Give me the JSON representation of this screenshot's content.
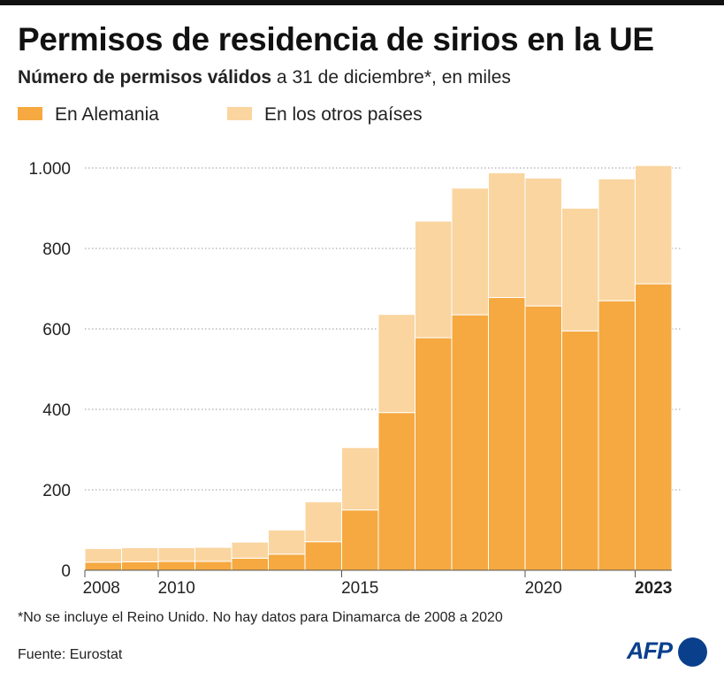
{
  "title": "Permisos de residencia de sirios en la UE",
  "subtitle_bold": "Número de permisos válidos",
  "subtitle_rest": " a 31 de diciembre*, en miles",
  "colors": {
    "germany": "#f5a940",
    "others": "#fad5a0",
    "grid": "#999999",
    "axis": "#555555"
  },
  "chart_data": {
    "type": "bar",
    "stacked": true,
    "categories": [
      "2008",
      "2009",
      "2010",
      "2011",
      "2012",
      "2013",
      "2014",
      "2015",
      "2016",
      "2017",
      "2018",
      "2019",
      "2020",
      "2021",
      "2022",
      "2023"
    ],
    "series": [
      {
        "name": "En Alemania",
        "color": "#f5a940",
        "values": [
          20,
          21,
          22,
          22,
          30,
          40,
          71,
          150,
          392,
          578,
          635,
          678,
          657,
          595,
          670,
          712
        ]
      },
      {
        "name": "En los otros países",
        "color": "#fad5a0",
        "values": [
          34,
          35,
          34,
          35,
          40,
          60,
          99,
          155,
          244,
          290,
          315,
          310,
          318,
          305,
          303,
          294
        ]
      }
    ],
    "x_tick_labels": [
      {
        "category": "2008",
        "label": "2008",
        "bold": false
      },
      {
        "category": "2010",
        "label": "2010",
        "bold": false
      },
      {
        "category": "2015",
        "label": "2015",
        "bold": false
      },
      {
        "category": "2020",
        "label": "2020",
        "bold": false
      },
      {
        "category": "2023",
        "label": "2023",
        "bold": true
      }
    ],
    "y_ticks": [
      {
        "value": 0,
        "label": "0"
      },
      {
        "value": 200,
        "label": "200"
      },
      {
        "value": 400,
        "label": "400"
      },
      {
        "value": 600,
        "label": "600"
      },
      {
        "value": 800,
        "label": "800"
      },
      {
        "value": 1000,
        "label": "1.000"
      }
    ],
    "ylim": [
      0,
      1000
    ],
    "grid": true,
    "legend_position": "top-left"
  },
  "footnote": "*No se incluye el Reino Unido. No hay datos para Dinamarca de 2008 a 2020",
  "source": "Fuente: Eurostat",
  "logo_text": "AFP"
}
